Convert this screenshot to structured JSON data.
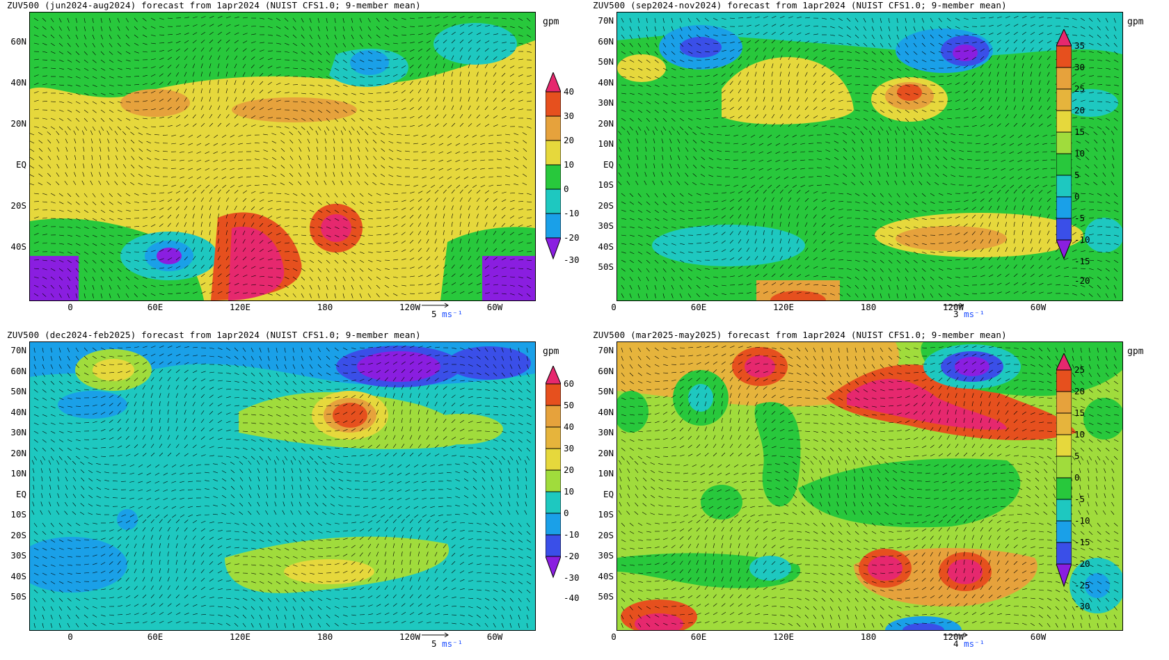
{
  "panels": [
    {
      "title": "ZUV500 (jun2024-aug2024) forecast from 1apr2024 (NUIST CFS1.0; 9-member mean)",
      "unit": "gpm",
      "ylabels": [
        "60N",
        "40N",
        "20N",
        "EQ",
        "20S",
        "40S"
      ],
      "xlabels": [
        "0",
        "60E",
        "120E",
        "180",
        "120W",
        "60W"
      ],
      "colorbar_labels": [
        "40",
        "30",
        "20",
        "10",
        "0",
        "-10",
        "-20",
        "-30"
      ],
      "vector_ref": {
        "value": "5",
        "unit": "ms⁻¹"
      }
    },
    {
      "title": "ZUV500 (sep2024-nov2024) forecast from 1apr2024 (NUIST CFS1.0; 9-member mean)",
      "unit": "gpm",
      "ylabels": [
        "70N",
        "60N",
        "50N",
        "40N",
        "30N",
        "20N",
        "10N",
        "EQ",
        "10S",
        "20S",
        "30S",
        "40S",
        "50S"
      ],
      "xlabels": [
        "0",
        "60E",
        "120E",
        "180",
        "120W",
        "60W"
      ],
      "colorbar_labels": [
        "35",
        "30",
        "25",
        "20",
        "15",
        "10",
        "5",
        "0",
        "-5",
        "-10",
        "-15",
        "-20"
      ],
      "vector_ref": {
        "value": "3",
        "unit": "ms⁻¹"
      }
    },
    {
      "title": "ZUV500 (dec2024-feb2025) forecast from 1apr2024 (NUIST CFS1.0; 9-member mean)",
      "unit": "gpm",
      "ylabels": [
        "70N",
        "60N",
        "50N",
        "40N",
        "30N",
        "20N",
        "10N",
        "EQ",
        "10S",
        "20S",
        "30S",
        "40S",
        "50S"
      ],
      "xlabels": [
        "0",
        "60E",
        "120E",
        "180",
        "120W",
        "60W"
      ],
      "colorbar_labels": [
        "60",
        "50",
        "40",
        "30",
        "20",
        "10",
        "0",
        "-10",
        "-20",
        "-30",
        "-40"
      ],
      "vector_ref": {
        "value": "5",
        "unit": "ms⁻¹"
      }
    },
    {
      "title": "ZUV500 (mar2025-may2025) forecast from 1apr2024 (NUIST CFS1.0; 9-member mean)",
      "unit": "gpm",
      "ylabels": [
        "70N",
        "60N",
        "50N",
        "40N",
        "30N",
        "20N",
        "10N",
        "EQ",
        "10S",
        "20S",
        "30S",
        "40S",
        "50S"
      ],
      "xlabels": [
        "0",
        "60E",
        "120E",
        "180",
        "120W",
        "60W"
      ],
      "colorbar_labels": [
        "25",
        "20",
        "15",
        "10",
        "5",
        "0",
        "-5",
        "-10",
        "-15",
        "-20",
        "-25",
        "-30"
      ],
      "vector_ref": {
        "value": "4",
        "unit": "ms⁻¹"
      }
    }
  ],
  "colors": {
    "palette": [
      "#8a1ee0",
      "#3a4fe8",
      "#1aa0e8",
      "#1ec8c0",
      "#28c83c",
      "#a0dc3c",
      "#e6d83c",
      "#e6a23c",
      "#e6501e",
      "#e6286e"
    ]
  }
}
